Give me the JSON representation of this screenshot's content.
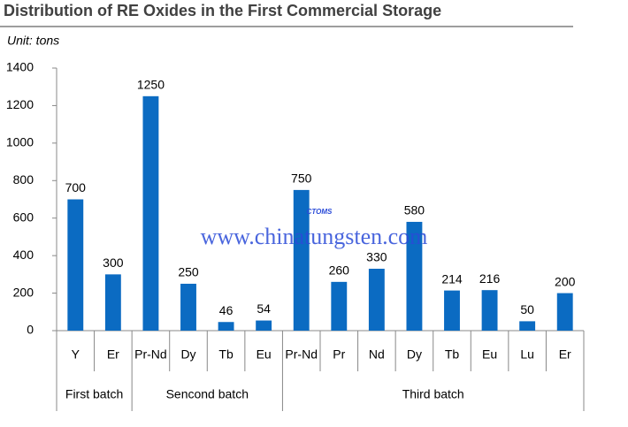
{
  "chart_data": {
    "type": "bar",
    "title": "Distribution of  RE Oxides in the First Commercial Storage",
    "subtitle": "Unit:  tons",
    "watermark": "www.chinatungsten.com",
    "logo_text": "CTOMS",
    "category_groups": [
      {
        "name": "First batch",
        "categories": [
          "Y",
          "Er"
        ]
      },
      {
        "name": "Sencond batch",
        "categories": [
          "Pr-Nd",
          "Dy",
          "Tb",
          "Eu"
        ]
      },
      {
        "name": "Third  batch",
        "categories": [
          "Pr-Nd",
          "Pr",
          "Nd",
          "Dy",
          "Tb",
          "Eu",
          "Lu",
          "Er"
        ]
      }
    ],
    "values": [
      700,
      300,
      1250,
      250,
      46,
      54,
      750,
      260,
      330,
      580,
      214,
      216,
      50,
      200
    ],
    "color": "#0b6bc2",
    "ylim": [
      0,
      1400
    ],
    "yticks": [
      0,
      200,
      400,
      600,
      800,
      1000,
      1200,
      1400
    ],
    "grid": false
  }
}
